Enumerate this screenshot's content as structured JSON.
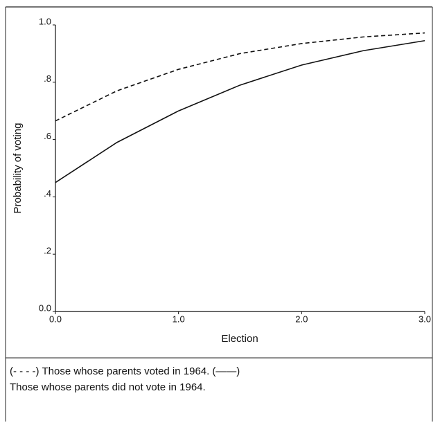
{
  "chart_data": {
    "type": "line",
    "x_label": "Election",
    "y_label": "Probability of voting",
    "x": [
      0,
      0.5,
      1.0,
      1.5,
      2.0,
      2.5,
      3.0
    ],
    "series": [
      {
        "name": "Those whose parents voted in 1964.",
        "marker_label": "(- - - -)",
        "color": "#111111",
        "dash": true,
        "values": [
          0.665,
          0.77,
          0.845,
          0.9,
          0.935,
          0.958,
          0.972
        ]
      },
      {
        "name": "Those whose parents did not vote in 1964.",
        "marker_label": "(——)",
        "color": "#111111",
        "dash": false,
        "values": [
          0.45,
          0.59,
          0.7,
          0.79,
          0.86,
          0.91,
          0.945
        ]
      }
    ],
    "xlim": [
      0,
      3
    ],
    "ylim": [
      0,
      1
    ],
    "xticks": [
      {
        "value": 0,
        "label": "0.0"
      },
      {
        "value": 1,
        "label": "1.0"
      },
      {
        "value": 2,
        "label": "2.0"
      },
      {
        "value": 3,
        "label": "3.0"
      }
    ],
    "yticks": [
      {
        "value": 0,
        "label": "0.0"
      },
      {
        "value": 0.2,
        "label": ".2"
      },
      {
        "value": 0.4,
        "label": ".4"
      },
      {
        "value": 0.6,
        "label": ".6"
      },
      {
        "value": 0.8,
        "label": ".8"
      },
      {
        "value": 1,
        "label": "1.0"
      }
    ]
  }
}
